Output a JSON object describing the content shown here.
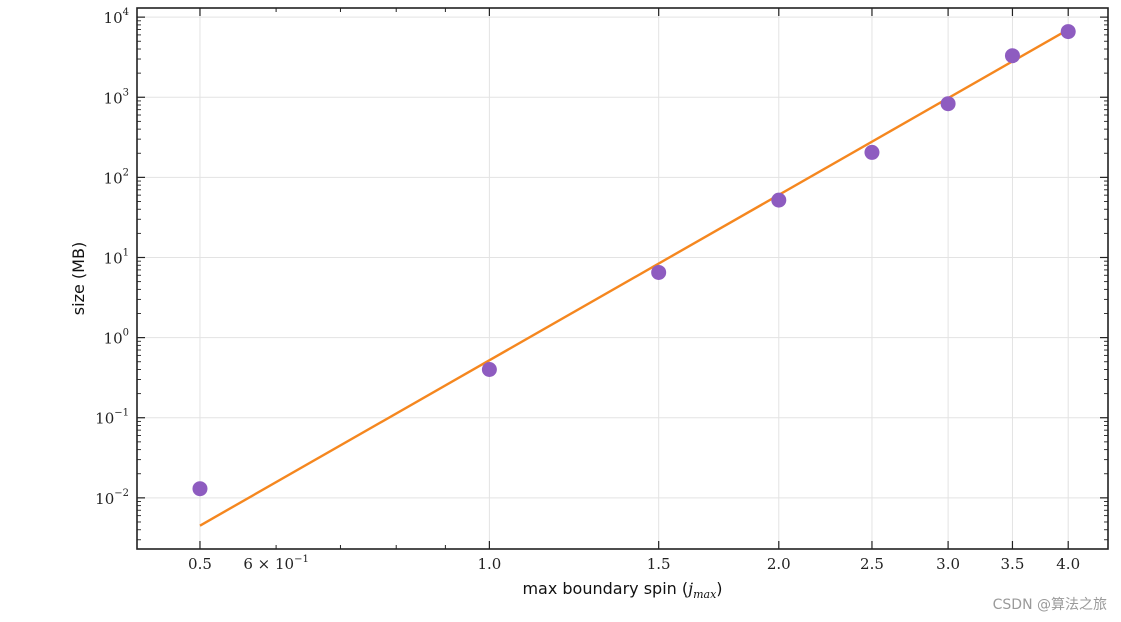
{
  "chart_data": {
    "type": "scatter",
    "xlabel": "max boundary spin (",
    "xlabel_var": "j",
    "xlabel_sub": "max",
    "xlabel_close": ")",
    "ylabel": "size (MB)",
    "xscale": "log",
    "yscale": "log",
    "xlim": [
      0.43,
      4.4
    ],
    "ylim": [
      0.0023,
      13000
    ],
    "grid": true,
    "x_major_ticks": [
      {
        "value": 0.5,
        "label": "0.5"
      },
      {
        "value": 1.0,
        "label": "1.0"
      },
      {
        "value": 1.5,
        "label": "1.5"
      },
      {
        "value": 2.0,
        "label": "2.0"
      },
      {
        "value": 2.5,
        "label": "2.5"
      },
      {
        "value": 3.0,
        "label": "3.0"
      },
      {
        "value": 3.5,
        "label": "3.5"
      },
      {
        "value": 4.0,
        "label": "4.0"
      }
    ],
    "x_minor_tick_label": {
      "value": 0.6,
      "mantissa": "6 × 10",
      "exp": "−1"
    },
    "y_ticks": [
      {
        "value": 0.01,
        "base": "10",
        "exp": "−2"
      },
      {
        "value": 0.1,
        "base": "10",
        "exp": "−1"
      },
      {
        "value": 1,
        "base": "10",
        "exp": "0"
      },
      {
        "value": 10,
        "base": "10",
        "exp": "1"
      },
      {
        "value": 100,
        "base": "10",
        "exp": "2"
      },
      {
        "value": 1000,
        "base": "10",
        "exp": "3"
      },
      {
        "value": 10000,
        "base": "10",
        "exp": "4"
      }
    ],
    "series": [
      {
        "kind": "points",
        "color": "#8e5cc0",
        "x": [
          0.5,
          1.0,
          1.5,
          2.0,
          2.5,
          3.0,
          3.5,
          4.0
        ],
        "y": [
          0.013,
          0.4,
          6.5,
          52,
          205,
          830,
          3300,
          6600
        ]
      },
      {
        "kind": "fit_line",
        "color": "#f5871f",
        "x": [
          0.5,
          4.0
        ],
        "y": [
          0.0045,
          7000
        ]
      }
    ],
    "colors": {
      "axis": "#222222",
      "grid": "#e3e3e3"
    }
  },
  "watermark": "CSDN @算法之旅"
}
